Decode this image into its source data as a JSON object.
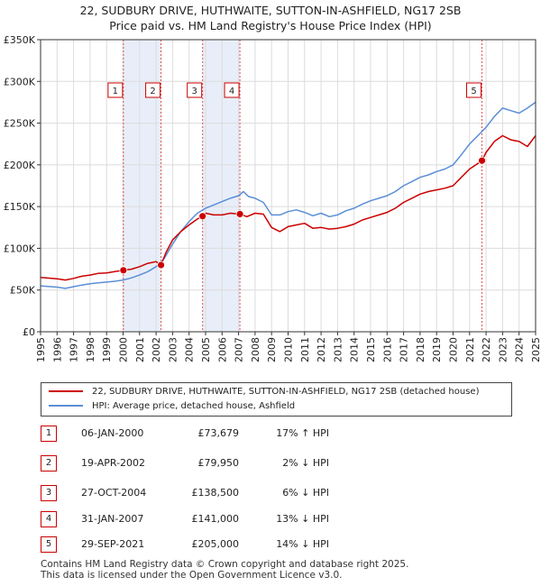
{
  "title_line1": "22, SUDBURY DRIVE, HUTHWAITE, SUTTON-IN-ASHFIELD, NG17 2SB",
  "title_line2": "Price paid vs. HM Land Registry's House Price Index (HPI)",
  "chart_data": {
    "type": "line",
    "x_range": [
      1995,
      2025
    ],
    "y_range": [
      0,
      350000
    ],
    "y_ticks": [
      {
        "value": 0,
        "label": "£0"
      },
      {
        "value": 50000,
        "label": "£50K"
      },
      {
        "value": 100000,
        "label": "£100K"
      },
      {
        "value": 150000,
        "label": "£150K"
      },
      {
        "value": 200000,
        "label": "£200K"
      },
      {
        "value": 250000,
        "label": "£250K"
      },
      {
        "value": 300000,
        "label": "£300K"
      },
      {
        "value": 350000,
        "label": "£350K"
      }
    ],
    "x_ticks": [
      "1995",
      "1996",
      "1997",
      "1998",
      "1999",
      "2000",
      "2001",
      "2002",
      "2003",
      "2004",
      "2005",
      "2006",
      "2007",
      "2008",
      "2009",
      "2010",
      "2011",
      "2012",
      "2013",
      "2014",
      "2015",
      "2016",
      "2017",
      "2018",
      "2019",
      "2020",
      "2021",
      "2022",
      "2023",
      "2024",
      "2025"
    ],
    "grid": true,
    "shaded_ranges": [
      [
        2000.02,
        2002.3
      ],
      [
        2004.82,
        2007.08
      ]
    ],
    "series": [
      {
        "name": "22, SUDBURY DRIVE, HUTHWAITE, SUTTON-IN-ASHFIELD, NG17 2SB (detached house)",
        "color": "#cc0000",
        "points": [
          [
            1995,
            65000
          ],
          [
            1996,
            63500
          ],
          [
            1996.5,
            62000
          ],
          [
            1997,
            64000
          ],
          [
            1997.5,
            66500
          ],
          [
            1998,
            68000
          ],
          [
            1998.5,
            70000
          ],
          [
            1999,
            70500
          ],
          [
            1999.5,
            72000
          ],
          [
            2000.02,
            73679
          ],
          [
            2000.5,
            75000
          ],
          [
            2001,
            78000
          ],
          [
            2001.5,
            82000
          ],
          [
            2002,
            84000
          ],
          [
            2002.3,
            79950
          ],
          [
            2002.6,
            95000
          ],
          [
            2003,
            110000
          ],
          [
            2003.5,
            120000
          ],
          [
            2004,
            128000
          ],
          [
            2004.5,
            135000
          ],
          [
            2004.82,
            138500
          ],
          [
            2005,
            142000
          ],
          [
            2005.5,
            140000
          ],
          [
            2006,
            140000
          ],
          [
            2006.5,
            142000
          ],
          [
            2007.08,
            141000
          ],
          [
            2007.5,
            138000
          ],
          [
            2008,
            142000
          ],
          [
            2008.5,
            141000
          ],
          [
            2009,
            125000
          ],
          [
            2009.5,
            120000
          ],
          [
            2010,
            126000
          ],
          [
            2010.5,
            128000
          ],
          [
            2011,
            130000
          ],
          [
            2011.5,
            124000
          ],
          [
            2012,
            125000
          ],
          [
            2012.5,
            123000
          ],
          [
            2013,
            124000
          ],
          [
            2013.5,
            126000
          ],
          [
            2014,
            129000
          ],
          [
            2014.5,
            134000
          ],
          [
            2015,
            137000
          ],
          [
            2015.5,
            140000
          ],
          [
            2016,
            143000
          ],
          [
            2016.5,
            148000
          ],
          [
            2017,
            155000
          ],
          [
            2017.5,
            160000
          ],
          [
            2018,
            165000
          ],
          [
            2018.5,
            168000
          ],
          [
            2019,
            170000
          ],
          [
            2019.5,
            172000
          ],
          [
            2020,
            175000
          ],
          [
            2020.5,
            185000
          ],
          [
            2021,
            195000
          ],
          [
            2021.75,
            205000
          ],
          [
            2022,
            215000
          ],
          [
            2022.5,
            228000
          ],
          [
            2023,
            235000
          ],
          [
            2023.5,
            230000
          ],
          [
            2024,
            228000
          ],
          [
            2024.5,
            222000
          ],
          [
            2025,
            235000
          ]
        ]
      },
      {
        "name": "HPI: Average price, detached house, Ashfield",
        "color": "#5b8fd6",
        "points": [
          [
            1995,
            55000
          ],
          [
            1996,
            53500
          ],
          [
            1996.5,
            52000
          ],
          [
            1997,
            54000
          ],
          [
            1997.5,
            56000
          ],
          [
            1998,
            57500
          ],
          [
            1998.5,
            58500
          ],
          [
            1999,
            59500
          ],
          [
            1999.5,
            60500
          ],
          [
            2000,
            62000
          ],
          [
            2000.5,
            64500
          ],
          [
            2001,
            68000
          ],
          [
            2001.5,
            72000
          ],
          [
            2002,
            78000
          ],
          [
            2002.5,
            88000
          ],
          [
            2003,
            105000
          ],
          [
            2003.5,
            120000
          ],
          [
            2004,
            132000
          ],
          [
            2004.5,
            142000
          ],
          [
            2005,
            148000
          ],
          [
            2005.5,
            152000
          ],
          [
            2006,
            156000
          ],
          [
            2006.5,
            160000
          ],
          [
            2007,
            163000
          ],
          [
            2007.3,
            168000
          ],
          [
            2007.6,
            162000
          ],
          [
            2008,
            160000
          ],
          [
            2008.5,
            155000
          ],
          [
            2009,
            140000
          ],
          [
            2009.5,
            140000
          ],
          [
            2010,
            144000
          ],
          [
            2010.5,
            146000
          ],
          [
            2011,
            143000
          ],
          [
            2011.5,
            139000
          ],
          [
            2012,
            142000
          ],
          [
            2012.5,
            138000
          ],
          [
            2013,
            140000
          ],
          [
            2013.5,
            145000
          ],
          [
            2014,
            148000
          ],
          [
            2014.5,
            153000
          ],
          [
            2015,
            157000
          ],
          [
            2015.5,
            160000
          ],
          [
            2016,
            163000
          ],
          [
            2016.5,
            168000
          ],
          [
            2017,
            175000
          ],
          [
            2017.5,
            180000
          ],
          [
            2018,
            185000
          ],
          [
            2018.5,
            188000
          ],
          [
            2019,
            192000
          ],
          [
            2019.5,
            195000
          ],
          [
            2020,
            200000
          ],
          [
            2020.5,
            212000
          ],
          [
            2021,
            225000
          ],
          [
            2021.5,
            235000
          ],
          [
            2022,
            245000
          ],
          [
            2022.5,
            258000
          ],
          [
            2023,
            268000
          ],
          [
            2023.5,
            265000
          ],
          [
            2024,
            262000
          ],
          [
            2024.5,
            268000
          ],
          [
            2025,
            275000
          ]
        ]
      }
    ],
    "sales": [
      {
        "label": "1",
        "x": 2000.02,
        "price": 73679
      },
      {
        "label": "2",
        "x": 2002.3,
        "price": 79950
      },
      {
        "label": "3",
        "x": 2004.82,
        "price": 138500
      },
      {
        "label": "4",
        "x": 2007.08,
        "price": 141000
      },
      {
        "label": "5",
        "x": 2021.75,
        "price": 205000
      }
    ]
  },
  "legend": {
    "red_label": "22, SUDBURY DRIVE, HUTHWAITE, SUTTON-IN-ASHFIELD, NG17 2SB (detached house)",
    "blue_label": "HPI: Average price, detached house, Ashfield"
  },
  "transactions": [
    {
      "num": "1",
      "date": "06-JAN-2000",
      "price": "£73,679",
      "hpi": "17% ↑ HPI"
    },
    {
      "num": "2",
      "date": "19-APR-2002",
      "price": "£79,950",
      "hpi": "2% ↓ HPI"
    },
    {
      "num": "3",
      "date": "27-OCT-2004",
      "price": "£138,500",
      "hpi": "6% ↓ HPI"
    },
    {
      "num": "4",
      "date": "31-JAN-2007",
      "price": "£141,000",
      "hpi": "13% ↓ HPI"
    },
    {
      "num": "5",
      "date": "29-SEP-2021",
      "price": "£205,000",
      "hpi": "14% ↓ HPI"
    }
  ],
  "footer": {
    "line1": "Contains HM Land Registry data © Crown copyright and database right 2025.",
    "line2": "This data is licensed under the Open Government Licence v3.0."
  }
}
